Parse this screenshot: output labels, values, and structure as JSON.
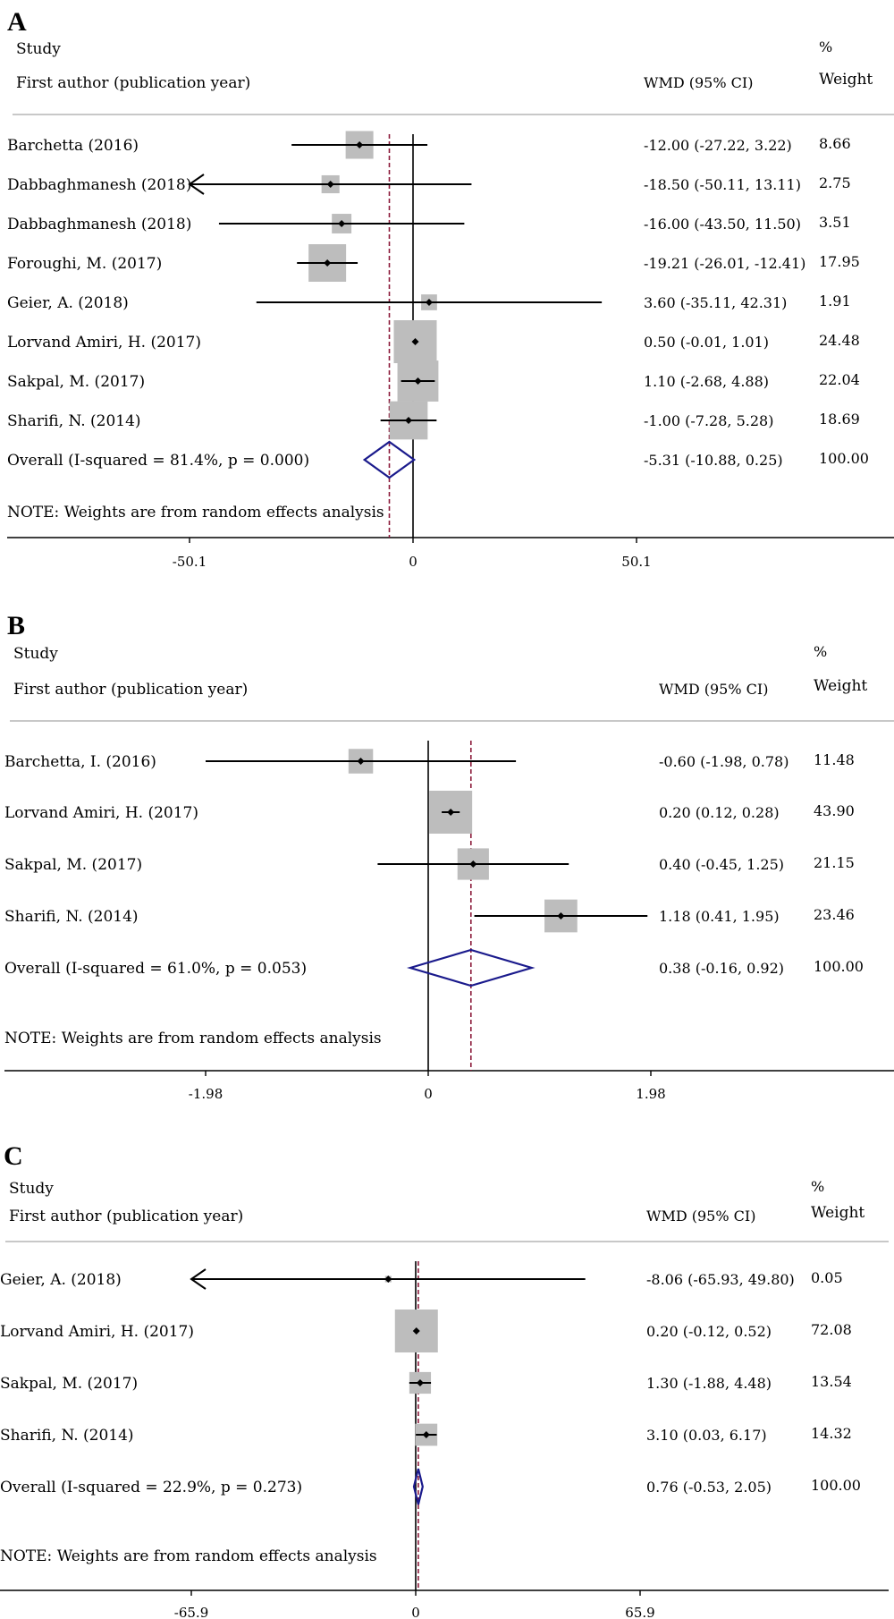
{
  "chart_data": [
    {
      "type": "forest",
      "panel": "A",
      "header": {
        "study": "Study",
        "author": "First author (publication year)",
        "effect": "WMD (95% CI)",
        "pct": "%",
        "weight": "Weight"
      },
      "xticks": [
        "-50.1",
        "0",
        "50.1"
      ],
      "xlim": [
        -50.1,
        50.1
      ],
      "studies": [
        {
          "label": "Barchetta (2016)",
          "ci_text": "-12.00 (-27.22, 3.22)",
          "weight_text": "8.66",
          "est": -12.0,
          "lo": -27.22,
          "hi": 3.22,
          "weight": 8.66
        },
        {
          "label": "Dabbaghmanesh (2018)",
          "ci_text": "-18.50 (-50.11, 13.11)",
          "weight_text": "2.75",
          "est": -18.5,
          "lo": -50.11,
          "hi": 13.11,
          "weight": 2.75
        },
        {
          "label": "Dabbaghmanesh (2018)",
          "ci_text": "-16.00 (-43.50, 11.50)",
          "weight_text": "3.51",
          "est": -16.0,
          "lo": -43.5,
          "hi": 11.5,
          "weight": 3.51
        },
        {
          "label": "Foroughi, M. (2017)",
          "ci_text": "-19.21 (-26.01, -12.41)",
          "weight_text": "17.95",
          "est": -19.21,
          "lo": -26.01,
          "hi": -12.41,
          "weight": 17.95
        },
        {
          "label": "Geier, A. (2018)",
          "ci_text": "3.60 (-35.11, 42.31)",
          "weight_text": "1.91",
          "est": 3.6,
          "lo": -35.11,
          "hi": 42.31,
          "weight": 1.91
        },
        {
          "label": "Lorvand Amiri, H. (2017)",
          "ci_text": "0.50 (-0.01, 1.01)",
          "weight_text": "24.48",
          "est": 0.5,
          "lo": -0.01,
          "hi": 1.01,
          "weight": 24.48
        },
        {
          "label": "Sakpal, M. (2017)",
          "ci_text": "1.10 (-2.68, 4.88)",
          "weight_text": "22.04",
          "est": 1.1,
          "lo": -2.68,
          "hi": 4.88,
          "weight": 22.04
        },
        {
          "label": "Sharifi, N. (2014)",
          "ci_text": "-1.00 (-7.28, 5.28)",
          "weight_text": "18.69",
          "est": -1.0,
          "lo": -7.28,
          "hi": 5.28,
          "weight": 18.69
        }
      ],
      "overall": {
        "label": "Overall  (I-squared = 81.4%, p = 0.000)",
        "ci_text": "-5.31 (-10.88, 0.25)",
        "weight_text": "100.00",
        "est": -5.31,
        "lo": -10.88,
        "hi": 0.25
      },
      "note": "NOTE: Weights are from random effects analysis"
    },
    {
      "type": "forest",
      "panel": "B",
      "header": {
        "study": "Study",
        "author": "First author (publication year)",
        "effect": "WMD (95% CI)",
        "pct": "%",
        "weight": "Weight"
      },
      "xticks": [
        "-1.98",
        "0",
        "1.98"
      ],
      "xlim": [
        -1.98,
        1.98
      ],
      "studies": [
        {
          "label": "Barchetta, I. (2016)",
          "ci_text": "-0.60 (-1.98, 0.78)",
          "weight_text": "11.48",
          "est": -0.6,
          "lo": -1.98,
          "hi": 0.78,
          "weight": 11.48
        },
        {
          "label": "Lorvand Amiri, H. (2017)",
          "ci_text": "0.20 (0.12, 0.28)",
          "weight_text": "43.90",
          "est": 0.2,
          "lo": 0.12,
          "hi": 0.28,
          "weight": 43.9
        },
        {
          "label": "Sakpal, M. (2017)",
          "ci_text": "0.40 (-0.45, 1.25)",
          "weight_text": "21.15",
          "est": 0.4,
          "lo": -0.45,
          "hi": 1.25,
          "weight": 21.15
        },
        {
          "label": "Sharifi, N. (2014)",
          "ci_text": "1.18 (0.41, 1.95)",
          "weight_text": "23.46",
          "est": 1.18,
          "lo": 0.41,
          "hi": 1.95,
          "weight": 23.46
        }
      ],
      "overall": {
        "label": "Overall  (I-squared = 61.0%, p = 0.053)",
        "ci_text": "0.38 (-0.16, 0.92)",
        "weight_text": "100.00",
        "est": 0.38,
        "lo": -0.16,
        "hi": 0.92
      },
      "note": "NOTE: Weights are from random effects analysis"
    },
    {
      "type": "forest",
      "panel": "C",
      "header": {
        "study": "Study",
        "author": "First author (publication year)",
        "effect": "WMD (95% CI)",
        "pct": "%",
        "weight": "Weight"
      },
      "xticks": [
        "-65.9",
        "0",
        "65.9"
      ],
      "xlim": [
        -65.9,
        65.9
      ],
      "studies": [
        {
          "label": "Geier, A. (2018)",
          "ci_text": "-8.06 (-65.93, 49.80)",
          "weight_text": "0.05",
          "est": -8.06,
          "lo": -65.93,
          "hi": 49.8,
          "weight": 0.05
        },
        {
          "label": "Lorvand Amiri, H. (2017)",
          "ci_text": "0.20 (-0.12, 0.52)",
          "weight_text": "72.08",
          "est": 0.2,
          "lo": -0.12,
          "hi": 0.52,
          "weight": 72.08
        },
        {
          "label": "Sakpal, M. (2017)",
          "ci_text": "1.30 (-1.88, 4.48)",
          "weight_text": "13.54",
          "est": 1.3,
          "lo": -1.88,
          "hi": 4.48,
          "weight": 13.54
        },
        {
          "label": "Sharifi, N. (2014)",
          "ci_text": "3.10 (0.03, 6.17)",
          "weight_text": "14.32",
          "est": 3.1,
          "lo": 0.03,
          "hi": 6.17,
          "weight": 14.32
        }
      ],
      "overall": {
        "label": "Overall  (I-squared = 22.9%, p = 0.273)",
        "ci_text": "0.76 (-0.53, 2.05)",
        "weight_text": "100.00",
        "est": 0.76,
        "lo": -0.53,
        "hi": 2.05
      },
      "note": "NOTE: Weights are from random effects analysis"
    }
  ],
  "colors": {
    "diamond": "#1a1a8c",
    "reference_line": "#8b1a3a",
    "box": "#bdbdbd",
    "rule": "#c8c8c8"
  }
}
